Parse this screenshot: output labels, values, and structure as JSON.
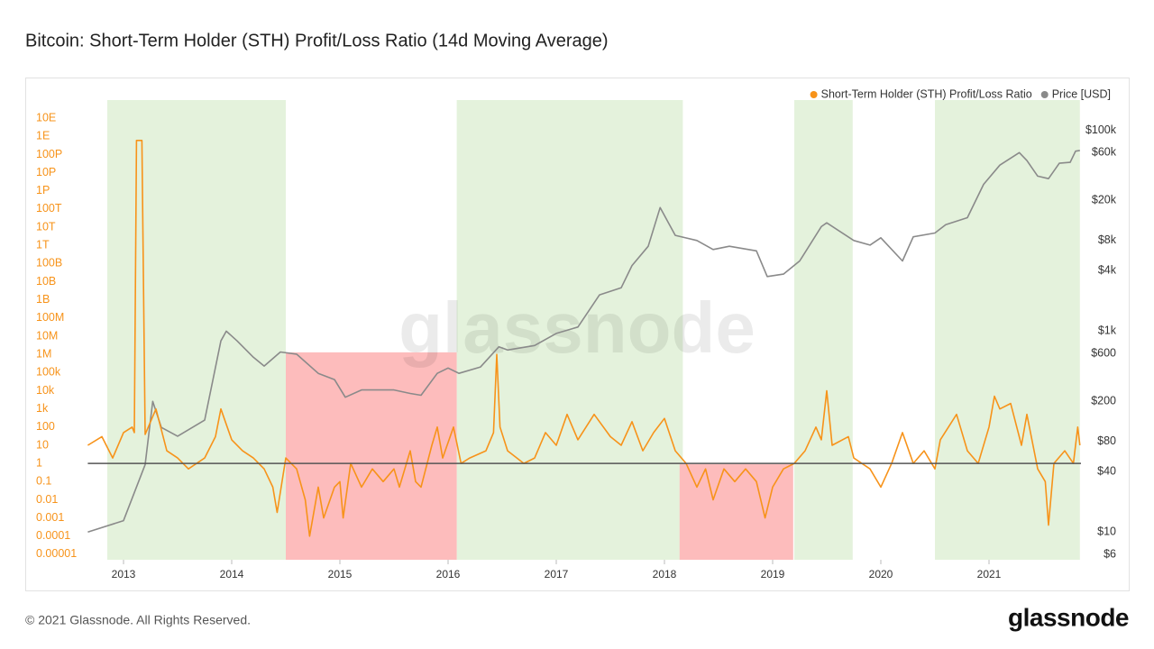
{
  "chart_data": {
    "type": "line",
    "title": "Bitcoin: Short-Term Holder (STH) Profit/Loss Ratio (14d Moving Average)",
    "watermark": "glassnode",
    "footer": "© 2021 Glassnode. All Rights Reserved.",
    "logo": "glassnode",
    "xlim": [
      2012.67,
      2021.85
    ],
    "xticks": [
      2013,
      2014,
      2015,
      2016,
      2017,
      2018,
      2019,
      2020,
      2021
    ],
    "ylim": [
      5e-06,
      1e+20
    ],
    "log_y": true,
    "yticks": [
      {
        "value": 1e+19,
        "label": "10E"
      },
      {
        "value": 1e+18,
        "label": "1E"
      },
      {
        "value": 1e+17,
        "label": "100P"
      },
      {
        "value": 1e+16,
        "label": "10P"
      },
      {
        "value": 1000000000000000.0,
        "label": "1P"
      },
      {
        "value": 100000000000000.0,
        "label": "100T"
      },
      {
        "value": 10000000000000.0,
        "label": "10T"
      },
      {
        "value": 1000000000000.0,
        "label": "1T"
      },
      {
        "value": 100000000000.0,
        "label": "100B"
      },
      {
        "value": 10000000000.0,
        "label": "10B"
      },
      {
        "value": 1000000000.0,
        "label": "1B"
      },
      {
        "value": 100000000.0,
        "label": "100M"
      },
      {
        "value": 10000000.0,
        "label": "10M"
      },
      {
        "value": 1000000.0,
        "label": "1M"
      },
      {
        "value": 100000.0,
        "label": "100k"
      },
      {
        "value": 10000.0,
        "label": "10k"
      },
      {
        "value": 1000,
        "label": "1k"
      },
      100,
      10,
      1,
      0.1,
      0.01,
      0.001,
      0.0001,
      1e-05
    ],
    "y2lim": [
      5.3,
      200000
    ],
    "log_y2": true,
    "y2ticks": [
      {
        "value": 100000,
        "label": "$100k"
      },
      {
        "value": 60000,
        "label": "$60k"
      },
      {
        "value": 20000,
        "label": "$20k"
      },
      {
        "value": 8000,
        "label": "$8k"
      },
      {
        "value": 4000,
        "label": "$4k"
      },
      {
        "value": 1000,
        "label": "$1k"
      },
      {
        "value": 600,
        "label": "$600"
      },
      {
        "value": 200,
        "label": "$200"
      },
      {
        "value": 80,
        "label": "$80"
      },
      {
        "value": 40,
        "label": "$40"
      },
      {
        "value": 10,
        "label": "$10"
      },
      {
        "value": 6,
        "label": "$6"
      }
    ],
    "reference_line": 1,
    "reference_color": "#555555",
    "highlights": [
      {
        "x": [
          2012.85,
          2014.5
        ],
        "color": "#e4f2dc"
      },
      {
        "x": [
          2016.08,
          2018.17
        ],
        "color": "#e4f2dc"
      },
      {
        "x": [
          2019.2,
          2019.74
        ],
        "color": "#e4f2dc"
      },
      {
        "x": [
          2020.5,
          2021.84
        ],
        "color": "#e4f2dc"
      },
      {
        "x": [
          2014.5,
          2016.08
        ],
        "y": [
          5e-06,
          1300000
        ],
        "color": "#fdbcbc"
      },
      {
        "x": [
          2018.14,
          2019.19
        ],
        "y": [
          5e-06,
          0.9
        ],
        "color": "#fdbcbc"
      }
    ],
    "legend": "top-right",
    "series": [
      {
        "name": "Short-Term Holder (STH) Profit/Loss Ratio",
        "color": "#f7931a",
        "axis": "y",
        "x": [
          2012.67,
          2012.8,
          2012.9,
          2013.0,
          2013.08,
          2013.1,
          2013.12,
          2013.17,
          2013.2,
          2013.3,
          2013.4,
          2013.5,
          2013.6,
          2013.75,
          2013.85,
          2013.9,
          2014.0,
          2014.1,
          2014.2,
          2014.3,
          2014.38,
          2014.42,
          2014.5,
          2014.6,
          2014.68,
          2014.72,
          2014.8,
          2014.85,
          2014.95,
          2015.0,
          2015.03,
          2015.1,
          2015.2,
          2015.3,
          2015.4,
          2015.5,
          2015.55,
          2015.65,
          2015.7,
          2015.75,
          2015.85,
          2015.9,
          2015.95,
          2016.05,
          2016.12,
          2016.2,
          2016.35,
          2016.42,
          2016.45,
          2016.48,
          2016.55,
          2016.7,
          2016.8,
          2016.9,
          2017.0,
          2017.1,
          2017.2,
          2017.35,
          2017.5,
          2017.6,
          2017.7,
          2017.8,
          2017.9,
          2018.0,
          2018.1,
          2018.2,
          2018.3,
          2018.38,
          2018.45,
          2018.55,
          2018.65,
          2018.75,
          2018.85,
          2018.93,
          2019.0,
          2019.1,
          2019.2,
          2019.3,
          2019.4,
          2019.45,
          2019.5,
          2019.55,
          2019.7,
          2019.75,
          2019.9,
          2020.0,
          2020.1,
          2020.2,
          2020.3,
          2020.4,
          2020.5,
          2020.55,
          2020.7,
          2020.8,
          2020.9,
          2021.0,
          2021.05,
          2021.1,
          2021.2,
          2021.3,
          2021.35,
          2021.45,
          2021.52,
          2021.55,
          2021.6,
          2021.7,
          2021.78,
          2021.82,
          2021.84
        ],
        "values": [
          10,
          30,
          2,
          50,
          100,
          50,
          6e+17,
          6e+17,
          40,
          1000,
          5,
          2,
          0.5,
          2,
          30,
          1000,
          20,
          5,
          2,
          0.5,
          0.05,
          0.002,
          2,
          0.5,
          0.01,
          0.0001,
          0.05,
          0.001,
          0.05,
          0.1,
          0.001,
          1,
          0.05,
          0.5,
          0.1,
          0.5,
          0.05,
          5,
          0.1,
          0.05,
          10,
          100,
          2,
          100,
          1,
          2,
          5,
          50,
          1000000,
          100,
          5,
          1,
          2,
          50,
          10,
          500,
          20,
          500,
          30,
          10,
          200,
          5,
          50,
          300,
          5,
          1,
          0.05,
          0.5,
          0.01,
          0.5,
          0.1,
          0.5,
          0.1,
          0.001,
          0.05,
          0.5,
          1,
          5,
          100,
          20,
          10000,
          10,
          30,
          2,
          0.5,
          0.05,
          1,
          50,
          1,
          5,
          0.5,
          20,
          500,
          5,
          1,
          100,
          5000,
          1000,
          2000,
          10,
          500,
          0.5,
          0.1,
          0.0004,
          1,
          5,
          1,
          100,
          10
        ]
      },
      {
        "name": "Price [USD]",
        "color": "#8a8a8a",
        "axis": "y2",
        "x": [
          2012.67,
          2013.0,
          2013.2,
          2013.27,
          2013.35,
          2013.5,
          2013.75,
          2013.9,
          2013.95,
          2014.05,
          2014.2,
          2014.3,
          2014.45,
          2014.6,
          2014.8,
          2014.95,
          2015.05,
          2015.2,
          2015.5,
          2015.65,
          2015.75,
          2015.9,
          2016.0,
          2016.1,
          2016.3,
          2016.47,
          2016.55,
          2016.8,
          2017.0,
          2017.2,
          2017.4,
          2017.6,
          2017.7,
          2017.85,
          2017.96,
          2018.1,
          2018.3,
          2018.45,
          2018.6,
          2018.85,
          2018.95,
          2019.1,
          2019.25,
          2019.45,
          2019.5,
          2019.75,
          2019.9,
          2020.0,
          2020.2,
          2020.3,
          2020.5,
          2020.6,
          2020.8,
          2020.95,
          2021.1,
          2021.28,
          2021.35,
          2021.45,
          2021.55,
          2021.65,
          2021.75,
          2021.8,
          2021.84
        ],
        "values": [
          10,
          13,
          47,
          200,
          110,
          90,
          130,
          800,
          1000,
          800,
          550,
          450,
          620,
          590,
          380,
          330,
          220,
          260,
          260,
          240,
          230,
          380,
          430,
          380,
          440,
          700,
          650,
          720,
          950,
          1100,
          2300,
          2700,
          4500,
          7000,
          17000,
          9000,
          8000,
          6500,
          7000,
          6300,
          3500,
          3700,
          5000,
          11000,
          12000,
          8000,
          7200,
          8500,
          5000,
          8700,
          9500,
          11500,
          13500,
          29000,
          45000,
          60000,
          50000,
          35000,
          33000,
          47000,
          48000,
          62000,
          63000
        ]
      }
    ]
  }
}
